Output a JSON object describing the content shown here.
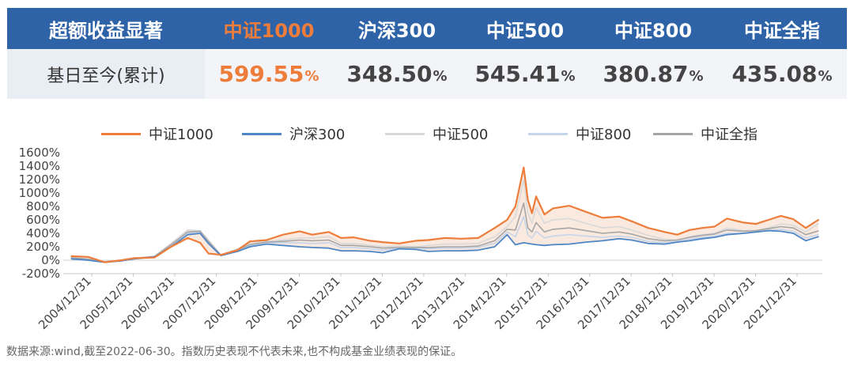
{
  "table": {
    "header": [
      "超额收益显著",
      "中证1000",
      "沪深300",
      "中证500",
      "中证800",
      "中证全指"
    ],
    "row_label": "基日至今(累计)",
    "values": [
      "599.55",
      "348.50",
      "545.41",
      "380.87",
      "435.08"
    ],
    "unit": "%",
    "highlight_color": "#ee7d3b",
    "header_bg": "#2f63a8"
  },
  "chart_data": {
    "type": "line",
    "title": "",
    "xlabel": "",
    "ylabel": "",
    "ylim": [
      -200,
      1600
    ],
    "yticks": [
      "-200%",
      "0%",
      "200%",
      "400%",
      "600%",
      "800%",
      "1000%",
      "1200%",
      "1400%",
      "1600%"
    ],
    "xticks": [
      "2004/12/31",
      "2005/12/31",
      "2006/12/31",
      "2007/12/31",
      "2008/12/31",
      "2009/12/31",
      "2010/12/31",
      "2011/12/31",
      "2012/12/31",
      "2013/12/31",
      "2014/12/31",
      "2015/12/31",
      "2016/12/31",
      "2017/12/31",
      "2018/12/31",
      "2019/12/31",
      "2020/12/31",
      "2021/12/31"
    ],
    "x": [
      2004.5,
      2004.9,
      2005.3,
      2005.7,
      2006.0,
      2006.5,
      2006.9,
      2007.3,
      2007.6,
      2007.8,
      2008.1,
      2008.5,
      2008.8,
      2009.2,
      2009.6,
      2010.0,
      2010.3,
      2010.7,
      2011.0,
      2011.3,
      2011.7,
      2012.0,
      2012.4,
      2012.8,
      2013.1,
      2013.5,
      2013.9,
      2014.3,
      2014.7,
      2015.0,
      2015.2,
      2015.4,
      2015.5,
      2015.6,
      2015.7,
      2015.9,
      2016.1,
      2016.5,
      2016.9,
      2017.3,
      2017.7,
      2018.0,
      2018.4,
      2018.8,
      2019.1,
      2019.4,
      2019.7,
      2020.0,
      2020.3,
      2020.7,
      2021.0,
      2021.3,
      2021.6,
      2021.9,
      2022.2,
      2022.5
    ],
    "series": [
      {
        "name": "中证1000",
        "color": "#ee7d3b",
        "width": 2.2,
        "values": [
          60,
          50,
          -30,
          0,
          30,
          40,
          200,
          330,
          260,
          100,
          80,
          150,
          280,
          300,
          380,
          430,
          380,
          420,
          330,
          340,
          290,
          270,
          250,
          290,
          300,
          330,
          320,
          330,
          480,
          600,
          800,
          1380,
          900,
          700,
          950,
          680,
          770,
          810,
          720,
          630,
          650,
          580,
          480,
          420,
          380,
          450,
          480,
          500,
          620,
          560,
          540,
          600,
          660,
          610,
          480,
          600
        ]
      },
      {
        "name": "沪深300",
        "color": "#4f86c6",
        "width": 1.8,
        "values": [
          20,
          0,
          -30,
          -10,
          20,
          50,
          200,
          380,
          400,
          250,
          70,
          130,
          200,
          240,
          220,
          200,
          190,
          180,
          140,
          140,
          130,
          110,
          170,
          160,
          130,
          140,
          140,
          150,
          200,
          380,
          230,
          260,
          250,
          240,
          230,
          220,
          230,
          240,
          270,
          290,
          320,
          300,
          250,
          240,
          270,
          290,
          320,
          340,
          380,
          400,
          420,
          440,
          430,
          400,
          290,
          350
        ]
      },
      {
        "name": "中证500",
        "color": "#d9d9d9",
        "width": 1.6,
        "values": [
          40,
          20,
          -20,
          0,
          30,
          60,
          250,
          450,
          440,
          300,
          80,
          170,
          250,
          280,
          300,
          330,
          330,
          350,
          250,
          250,
          220,
          200,
          210,
          200,
          220,
          240,
          240,
          250,
          350,
          500,
          650,
          1200,
          700,
          550,
          780,
          550,
          600,
          620,
          550,
          480,
          500,
          450,
          370,
          310,
          300,
          350,
          380,
          400,
          480,
          440,
          440,
          480,
          540,
          520,
          420,
          545
        ]
      },
      {
        "name": "中证800",
        "color": "#c6d5ea",
        "width": 1.6,
        "values": [
          30,
          10,
          -25,
          -5,
          25,
          55,
          220,
          400,
          420,
          270,
          75,
          150,
          220,
          260,
          260,
          260,
          250,
          260,
          190,
          190,
          170,
          150,
          180,
          180,
          170,
          180,
          180,
          190,
          250,
          420,
          350,
          650,
          380,
          330,
          430,
          330,
          360,
          380,
          360,
          340,
          360,
          340,
          280,
          260,
          280,
          310,
          340,
          360,
          400,
          400,
          420,
          450,
          460,
          430,
          330,
          380
        ]
      },
      {
        "name": "中证全指",
        "color": "#a6a6a6",
        "width": 1.6,
        "values": [
          35,
          15,
          -25,
          -5,
          25,
          55,
          230,
          420,
          430,
          280,
          78,
          155,
          230,
          270,
          280,
          300,
          290,
          300,
          220,
          220,
          200,
          180,
          190,
          190,
          190,
          200,
          200,
          210,
          290,
          460,
          450,
          850,
          480,
          420,
          560,
          420,
          460,
          480,
          440,
          400,
          420,
          390,
          320,
          290,
          300,
          340,
          370,
          390,
          450,
          430,
          440,
          470,
          500,
          480,
          380,
          435
        ]
      }
    ],
    "legend": "top"
  },
  "source_note": "数据来源:wind,截至2022-06-30。指数历史表现不代表未来,也不构成基金业绩表现的保证。"
}
